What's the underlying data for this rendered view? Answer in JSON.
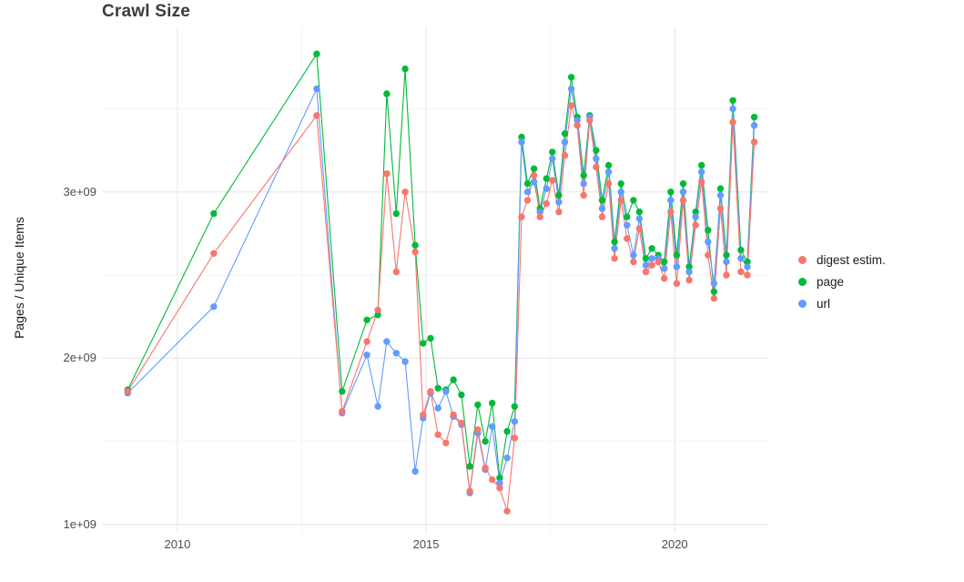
{
  "chart_data": {
    "type": "line",
    "title": "Crawl Size",
    "xlabel": "",
    "ylabel": "Pages / Unique Items",
    "xlim": [
      2008.5,
      2021.9
    ],
    "ylim": [
      950000000.0,
      3990000000.0
    ],
    "grid": true,
    "legend_position": "right",
    "xticks": [
      {
        "value": 2010,
        "label": "2010"
      },
      {
        "value": 2015,
        "label": "2015"
      },
      {
        "value": 2020,
        "label": "2020"
      }
    ],
    "yticks": [
      {
        "value": 1000000000.0,
        "label": "1e+09"
      },
      {
        "value": 2000000000.0,
        "label": "2e+09"
      },
      {
        "value": 3000000000.0,
        "label": "3e+09"
      }
    ],
    "x_minor": [
      2012.5,
      2017.5
    ],
    "y_minor": [
      1500000000.0,
      2500000000.0,
      3500000000.0
    ],
    "series": [
      {
        "name": "digest estim.",
        "color": "#F8766D",
        "points": [
          [
            2009.0,
            1800000000.0
          ],
          [
            2010.73,
            2630000000.0
          ],
          [
            2012.8,
            3460000000.0
          ],
          [
            2013.31,
            1680000000.0
          ],
          [
            2013.81,
            2100000000.0
          ],
          [
            2014.03,
            2290000000.0
          ],
          [
            2014.21,
            3110000000.0
          ],
          [
            2014.4,
            2520000000.0
          ],
          [
            2014.58,
            3000000000.0
          ],
          [
            2014.78,
            2640000000.0
          ],
          [
            2014.94,
            1660000000.0
          ],
          [
            2015.09,
            1800000000.0
          ],
          [
            2015.24,
            1540000000.0
          ],
          [
            2015.4,
            1490000000.0
          ],
          [
            2015.55,
            1660000000.0
          ],
          [
            2015.71,
            1610000000.0
          ],
          [
            2015.88,
            1200000000.0
          ],
          [
            2016.04,
            1570000000.0
          ],
          [
            2016.19,
            1340000000.0
          ],
          [
            2016.33,
            1270000000.0
          ],
          [
            2016.48,
            1220000000.0
          ],
          [
            2016.63,
            1080000000.0
          ],
          [
            2016.78,
            1520000000.0
          ],
          [
            2016.92,
            2850000000.0
          ],
          [
            2017.04,
            2950000000.0
          ],
          [
            2017.17,
            3100000000.0
          ],
          [
            2017.29,
            2850000000.0
          ],
          [
            2017.42,
            2930000000.0
          ],
          [
            2017.54,
            3070000000.0
          ],
          [
            2017.67,
            2880000000.0
          ],
          [
            2017.79,
            3220000000.0
          ],
          [
            2017.92,
            3520000000.0
          ],
          [
            2018.04,
            3400000000.0
          ],
          [
            2018.17,
            2980000000.0
          ],
          [
            2018.29,
            3430000000.0
          ],
          [
            2018.42,
            3150000000.0
          ],
          [
            2018.54,
            2850000000.0
          ],
          [
            2018.67,
            3050000000.0
          ],
          [
            2018.79,
            2600000000.0
          ],
          [
            2018.92,
            2950000000.0
          ],
          [
            2019.04,
            2720000000.0
          ],
          [
            2019.17,
            2580000000.0
          ],
          [
            2019.29,
            2780000000.0
          ],
          [
            2019.42,
            2520000000.0
          ],
          [
            2019.54,
            2560000000.0
          ],
          [
            2019.67,
            2580000000.0
          ],
          [
            2019.79,
            2480000000.0
          ],
          [
            2019.92,
            2880000000.0
          ],
          [
            2020.04,
            2450000000.0
          ],
          [
            2020.17,
            2950000000.0
          ],
          [
            2020.29,
            2470000000.0
          ],
          [
            2020.42,
            2800000000.0
          ],
          [
            2020.54,
            3060000000.0
          ],
          [
            2020.67,
            2620000000.0
          ],
          [
            2020.79,
            2360000000.0
          ],
          [
            2020.92,
            2900000000.0
          ],
          [
            2021.04,
            2500000000.0
          ],
          [
            2021.17,
            3420000000.0
          ],
          [
            2021.33,
            2520000000.0
          ],
          [
            2021.46,
            2500000000.0
          ],
          [
            2021.6,
            3300000000.0
          ]
        ]
      },
      {
        "name": "page",
        "color": "#00BA38",
        "points": [
          [
            2009.0,
            1810000000.0
          ],
          [
            2010.73,
            2870000000.0
          ],
          [
            2012.8,
            3830000000.0
          ],
          [
            2013.31,
            1800000000.0
          ],
          [
            2013.81,
            2230000000.0
          ],
          [
            2014.03,
            2260000000.0
          ],
          [
            2014.21,
            3590000000.0
          ],
          [
            2014.4,
            2870000000.0
          ],
          [
            2014.58,
            3740000000.0
          ],
          [
            2014.78,
            2680000000.0
          ],
          [
            2014.94,
            2090000000.0
          ],
          [
            2015.09,
            2120000000.0
          ],
          [
            2015.24,
            1820000000.0
          ],
          [
            2015.4,
            1810000000.0
          ],
          [
            2015.55,
            1870000000.0
          ],
          [
            2015.71,
            1780000000.0
          ],
          [
            2015.88,
            1350000000.0
          ],
          [
            2016.04,
            1720000000.0
          ],
          [
            2016.19,
            1500000000.0
          ],
          [
            2016.33,
            1730000000.0
          ],
          [
            2016.48,
            1280000000.0
          ],
          [
            2016.63,
            1560000000.0
          ],
          [
            2016.78,
            1710000000.0
          ],
          [
            2016.92,
            3330000000.0
          ],
          [
            2017.04,
            3050000000.0
          ],
          [
            2017.17,
            3140000000.0
          ],
          [
            2017.29,
            2900000000.0
          ],
          [
            2017.42,
            3080000000.0
          ],
          [
            2017.54,
            3240000000.0
          ],
          [
            2017.67,
            2980000000.0
          ],
          [
            2017.79,
            3350000000.0
          ],
          [
            2017.92,
            3690000000.0
          ],
          [
            2018.04,
            3450000000.0
          ],
          [
            2018.17,
            3100000000.0
          ],
          [
            2018.29,
            3460000000.0
          ],
          [
            2018.42,
            3250000000.0
          ],
          [
            2018.54,
            2950000000.0
          ],
          [
            2018.67,
            3160000000.0
          ],
          [
            2018.79,
            2700000000.0
          ],
          [
            2018.92,
            3050000000.0
          ],
          [
            2019.04,
            2850000000.0
          ],
          [
            2019.17,
            2950000000.0
          ],
          [
            2019.29,
            2880000000.0
          ],
          [
            2019.42,
            2600000000.0
          ],
          [
            2019.54,
            2660000000.0
          ],
          [
            2019.67,
            2620000000.0
          ],
          [
            2019.79,
            2580000000.0
          ],
          [
            2019.92,
            3000000000.0
          ],
          [
            2020.04,
            2620000000.0
          ],
          [
            2020.17,
            3050000000.0
          ],
          [
            2020.29,
            2550000000.0
          ],
          [
            2020.42,
            2880000000.0
          ],
          [
            2020.54,
            3160000000.0
          ],
          [
            2020.67,
            2770000000.0
          ],
          [
            2020.79,
            2400000000.0
          ],
          [
            2020.92,
            3020000000.0
          ],
          [
            2021.04,
            2620000000.0
          ],
          [
            2021.17,
            3550000000.0
          ],
          [
            2021.33,
            2650000000.0
          ],
          [
            2021.46,
            2580000000.0
          ],
          [
            2021.6,
            3450000000.0
          ]
        ]
      },
      {
        "name": "url",
        "color": "#619CFF",
        "points": [
          [
            2009.0,
            1790000000.0
          ],
          [
            2010.73,
            2310000000.0
          ],
          [
            2012.8,
            3620000000.0
          ],
          [
            2013.31,
            1670000000.0
          ],
          [
            2013.81,
            2020000000.0
          ],
          [
            2014.03,
            1710000000.0
          ],
          [
            2014.21,
            2100000000.0
          ],
          [
            2014.4,
            2030000000.0
          ],
          [
            2014.58,
            1980000000.0
          ],
          [
            2014.78,
            1320000000.0
          ],
          [
            2014.94,
            1640000000.0
          ],
          [
            2015.09,
            1790000000.0
          ],
          [
            2015.24,
            1700000000.0
          ],
          [
            2015.4,
            1800000000.0
          ],
          [
            2015.55,
            1650000000.0
          ],
          [
            2015.71,
            1600000000.0
          ],
          [
            2015.88,
            1190000000.0
          ],
          [
            2016.04,
            1550000000.0
          ],
          [
            2016.19,
            1330000000.0
          ],
          [
            2016.33,
            1590000000.0
          ],
          [
            2016.48,
            1250000000.0
          ],
          [
            2016.63,
            1400000000.0
          ],
          [
            2016.78,
            1620000000.0
          ],
          [
            2016.92,
            3300000000.0
          ],
          [
            2017.04,
            3000000000.0
          ],
          [
            2017.17,
            3060000000.0
          ],
          [
            2017.29,
            2880000000.0
          ],
          [
            2017.42,
            3020000000.0
          ],
          [
            2017.54,
            3200000000.0
          ],
          [
            2017.67,
            2940000000.0
          ],
          [
            2017.79,
            3300000000.0
          ],
          [
            2017.92,
            3620000000.0
          ],
          [
            2018.04,
            3430000000.0
          ],
          [
            2018.17,
            3050000000.0
          ],
          [
            2018.29,
            3450000000.0
          ],
          [
            2018.42,
            3200000000.0
          ],
          [
            2018.54,
            2900000000.0
          ],
          [
            2018.67,
            3120000000.0
          ],
          [
            2018.79,
            2660000000.0
          ],
          [
            2018.92,
            3000000000.0
          ],
          [
            2019.04,
            2800000000.0
          ],
          [
            2019.17,
            2620000000.0
          ],
          [
            2019.29,
            2840000000.0
          ],
          [
            2019.42,
            2560000000.0
          ],
          [
            2019.54,
            2600000000.0
          ],
          [
            2019.67,
            2600000000.0
          ],
          [
            2019.79,
            2540000000.0
          ],
          [
            2019.92,
            2950000000.0
          ],
          [
            2020.04,
            2550000000.0
          ],
          [
            2020.17,
            3000000000.0
          ],
          [
            2020.29,
            2520000000.0
          ],
          [
            2020.42,
            2850000000.0
          ],
          [
            2020.54,
            3120000000.0
          ],
          [
            2020.67,
            2700000000.0
          ],
          [
            2020.79,
            2450000000.0
          ],
          [
            2020.92,
            2980000000.0
          ],
          [
            2021.04,
            2580000000.0
          ],
          [
            2021.17,
            3500000000.0
          ],
          [
            2021.33,
            2600000000.0
          ],
          [
            2021.46,
            2550000000.0
          ],
          [
            2021.6,
            3400000000.0
          ]
        ]
      }
    ]
  }
}
